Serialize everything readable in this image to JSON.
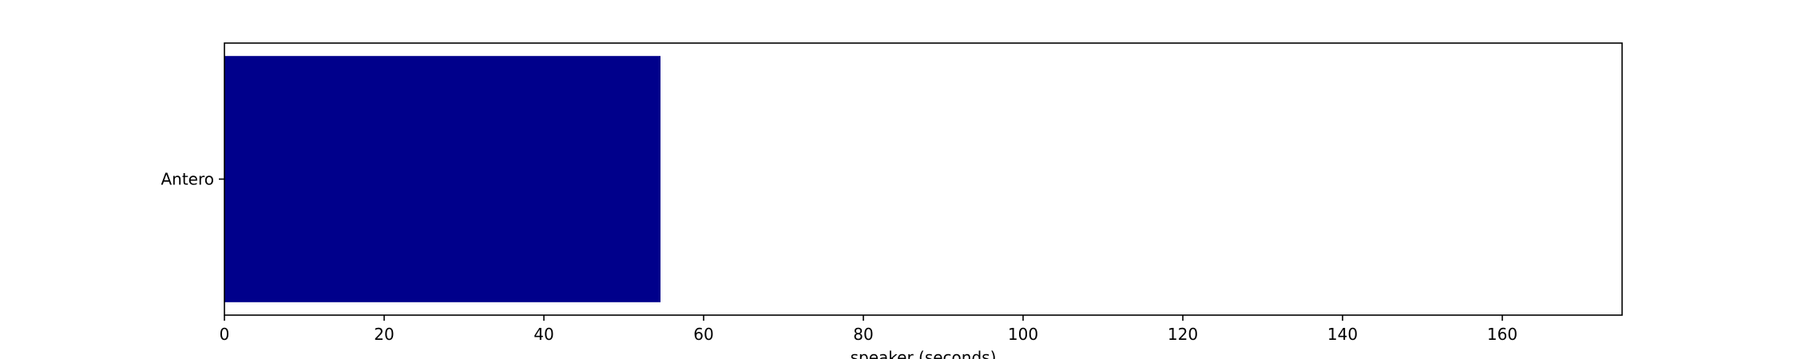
{
  "chart_data": {
    "type": "bar",
    "orientation": "horizontal",
    "categories": [
      "Antero"
    ],
    "values": [
      54.6
    ],
    "xlabel": "speaker (seconds)",
    "ylabel": "",
    "xlim": [
      0,
      175
    ],
    "xticks": [
      0,
      20,
      40,
      60,
      80,
      100,
      120,
      140,
      160
    ],
    "xtick_labels": [
      "0",
      "20",
      "40",
      "60",
      "80",
      "100",
      "120",
      "140",
      "160"
    ],
    "grid": false,
    "legend": "none",
    "bar_color": "#00008b"
  }
}
